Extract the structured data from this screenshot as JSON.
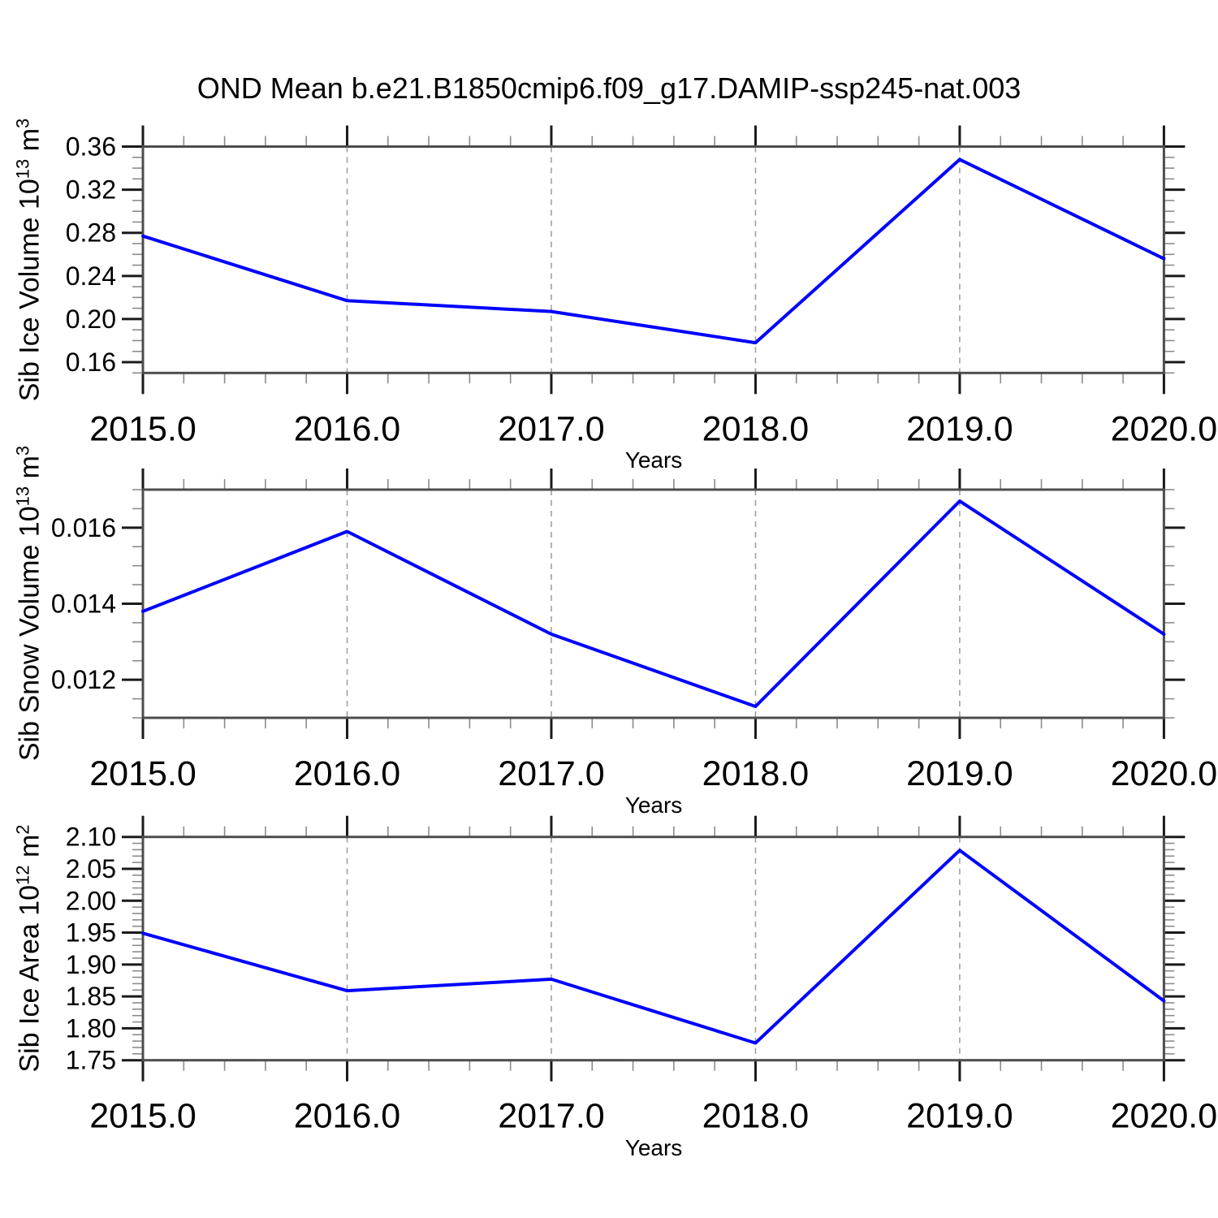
{
  "title": "OND Mean b.e21.B1850cmip6.f09_g17.DAMIP-ssp245-nat.003",
  "colors": {
    "line": "#0000ff",
    "grid": "#9a9a9a",
    "frame": "#4d4d4d",
    "major_tick": "#1a1a1a",
    "minor_tick": "#8c8c8c",
    "text": "#000000"
  },
  "chart_data": [
    {
      "type": "line",
      "name": "sib-ice-volume",
      "ylabel_prefix": "Sib Ice Volume 10",
      "ylabel_exp": "13",
      "ylabel_unit": " m",
      "ylabel_unit_exp": "3",
      "xlabel": "Years",
      "x": [
        2015,
        2016,
        2017,
        2018,
        2019,
        2020
      ],
      "y": [
        0.277,
        0.217,
        0.207,
        0.178,
        0.348,
        0.256
      ],
      "xlim": [
        2015,
        2020
      ],
      "ylim": [
        0.15,
        0.36
      ],
      "xticks_major": [
        2015,
        2016,
        2017,
        2018,
        2019,
        2020
      ],
      "xtick_labels": [
        "2015.0",
        "2016.0",
        "2017.0",
        "2018.0",
        "2019.0",
        "2020.0"
      ],
      "xminor_step": 0.2,
      "yticks_major": [
        0.16,
        0.2,
        0.24,
        0.28,
        0.32,
        0.36
      ],
      "ytick_labels": [
        "0.16",
        "0.20",
        "0.24",
        "0.28",
        "0.32",
        "0.36"
      ],
      "yminor_step": 0.01,
      "gridlines_x": [
        2016,
        2017,
        2018,
        2019
      ],
      "grid": "vertical-dashed",
      "legend": "none"
    },
    {
      "type": "line",
      "name": "sib-snow-volume",
      "ylabel_prefix": "Sib Snow Volume 10",
      "ylabel_exp": "13",
      "ylabel_unit": " m",
      "ylabel_unit_exp": "3",
      "xlabel": "Years",
      "x": [
        2015,
        2016,
        2017,
        2018,
        2019,
        2020
      ],
      "y": [
        0.0138,
        0.0159,
        0.0132,
        0.0113,
        0.0167,
        0.0132
      ],
      "xlim": [
        2015,
        2020
      ],
      "ylim": [
        0.011,
        0.017
      ],
      "xticks_major": [
        2015,
        2016,
        2017,
        2018,
        2019,
        2020
      ],
      "xtick_labels": [
        "2015.0",
        "2016.0",
        "2017.0",
        "2018.0",
        "2019.0",
        "2020.0"
      ],
      "xminor_step": 0.2,
      "yticks_major": [
        0.012,
        0.014,
        0.016
      ],
      "ytick_labels": [
        "0.012",
        "0.014",
        "0.016"
      ],
      "yminor_step": 0.0005,
      "gridlines_x": [
        2016,
        2017,
        2018,
        2019
      ],
      "grid": "vertical-dashed",
      "legend": "none"
    },
    {
      "type": "line",
      "name": "sib-ice-area",
      "ylabel_prefix": "Sib Ice Area 10",
      "ylabel_exp": "12",
      "ylabel_unit": " m",
      "ylabel_unit_exp": "2",
      "xlabel": "Years",
      "x": [
        2015,
        2016,
        2017,
        2018,
        2019,
        2020
      ],
      "y": [
        1.949,
        1.859,
        1.877,
        1.777,
        2.079,
        1.843
      ],
      "xlim": [
        2015,
        2020
      ],
      "ylim": [
        1.75,
        2.1
      ],
      "xticks_major": [
        2015,
        2016,
        2017,
        2018,
        2019,
        2020
      ],
      "xtick_labels": [
        "2015.0",
        "2016.0",
        "2017.0",
        "2018.0",
        "2019.0",
        "2020.0"
      ],
      "xminor_step": 0.2,
      "yticks_major": [
        1.75,
        1.8,
        1.85,
        1.9,
        1.95,
        2.0,
        2.05,
        2.1
      ],
      "ytick_labels": [
        "1.75",
        "1.80",
        "1.85",
        "1.90",
        "1.95",
        "2.00",
        "2.05",
        "2.10"
      ],
      "yminor_step": 0.01,
      "gridlines_x": [
        2016,
        2017,
        2018,
        2019
      ],
      "grid": "vertical-dashed",
      "legend": "none"
    }
  ]
}
